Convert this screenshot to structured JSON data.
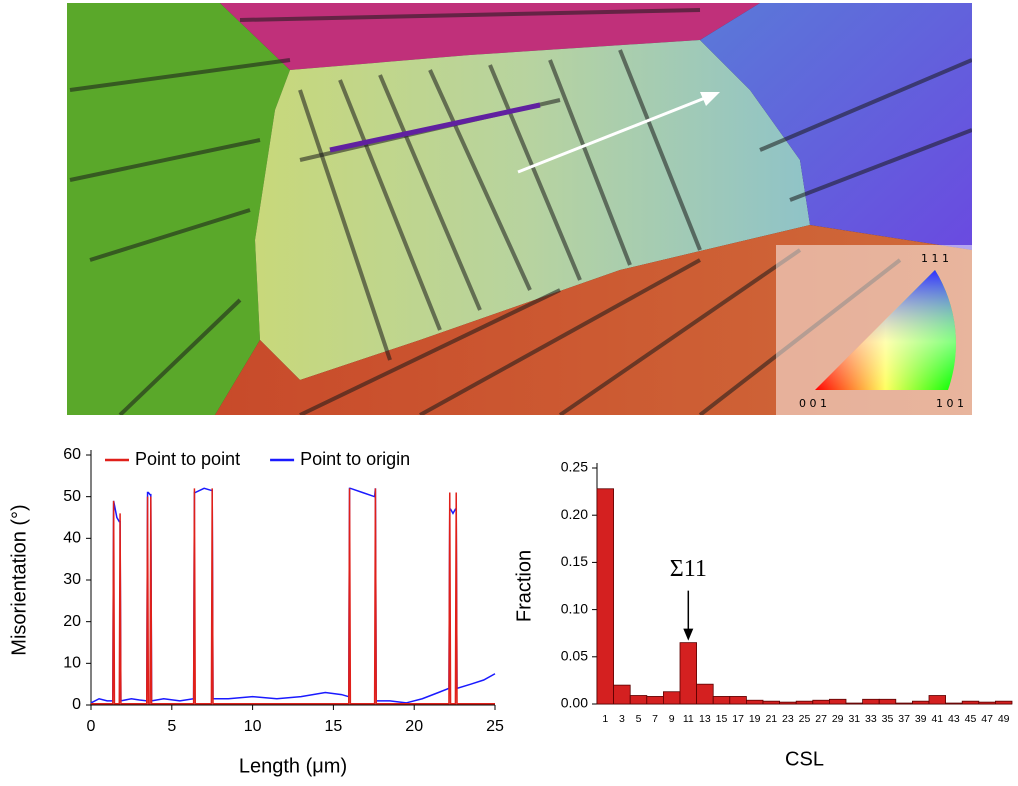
{
  "image": {
    "ipf_labels": [
      "1 1 1",
      "0 0 1",
      "1 0 1"
    ]
  },
  "chart_data": [
    {
      "type": "line",
      "xlabel": "Length (μm)",
      "ylabel": "Misorientation (°)",
      "x": [
        0,
        0.5,
        1.0,
        1.35,
        1.4,
        1.45,
        1.6,
        1.75,
        1.8,
        1.85,
        2.5,
        3.0,
        3.45,
        3.5,
        3.55,
        3.65,
        3.7,
        3.75,
        4.5,
        5.5,
        6.35,
        6.4,
        6.45,
        7.0,
        7.45,
        7.5,
        7.55,
        8.5,
        10,
        11.5,
        13,
        14.5,
        15.5,
        15.95,
        16.0,
        16.05,
        16.8,
        17.55,
        17.6,
        17.65,
        18.5,
        19.5,
        20.5,
        21.5,
        22.15,
        22.2,
        22.25,
        22.4,
        22.55,
        22.6,
        22.65,
        23.5,
        24.3,
        25
      ],
      "series": [
        {
          "name": "Point to origin",
          "color": "#1a1aff",
          "values": [
            0.5,
            1.5,
            1,
            1,
            49,
            48,
            45,
            44,
            44,
            1,
            1.5,
            1.2,
            1,
            51,
            51,
            50.5,
            50.5,
            1,
            1.5,
            1,
            1.5,
            51,
            51,
            52,
            51.5,
            51.5,
            1.5,
            1.5,
            2,
            1.5,
            2,
            3,
            2.5,
            2,
            52,
            52,
            51,
            50,
            52,
            1,
            1,
            0.5,
            1.5,
            3,
            4,
            47,
            47,
            46,
            47,
            47,
            4,
            5,
            6,
            7.5
          ]
        },
        {
          "name": "Point to point",
          "color": "#e0201a",
          "values": [
            0.3,
            0.3,
            0.3,
            0.3,
            49,
            0.3,
            0.3,
            0.3,
            46,
            0.3,
            0.3,
            0.3,
            0.3,
            50,
            0.3,
            0.3,
            50,
            0.3,
            0.3,
            0.3,
            0.3,
            52,
            0.3,
            0.3,
            0.3,
            52,
            0.3,
            0.3,
            0.3,
            0.3,
            0.3,
            0.3,
            0.3,
            0.3,
            52,
            0.3,
            0.3,
            0.3,
            52,
            0.3,
            0.3,
            0.3,
            0.3,
            0.3,
            0.3,
            51,
            0.3,
            0.3,
            0.3,
            51,
            0.3,
            0.3,
            0.3,
            0.3
          ]
        }
      ],
      "legend_order": [
        1,
        0
      ],
      "xlim": [
        0,
        25
      ],
      "xticks": [
        0,
        5,
        10,
        15,
        20,
        25
      ],
      "ylim": [
        0,
        60
      ],
      "yticks": [
        0,
        10,
        20,
        30,
        40,
        50,
        60
      ]
    },
    {
      "type": "bar",
      "xlabel": "CSL",
      "ylabel": "Fraction",
      "color": "#d42020",
      "categories": [
        "1",
        "3",
        "5",
        "7",
        "9",
        "11",
        "13",
        "15",
        "17",
        "19",
        "21",
        "23",
        "25",
        "27",
        "29",
        "31",
        "33",
        "35",
        "37",
        "39",
        "41",
        "43",
        "45",
        "47",
        "49"
      ],
      "values": [
        0.228,
        0.02,
        0.009,
        0.008,
        0.013,
        0.065,
        0.021,
        0.008,
        0.008,
        0.004,
        0.003,
        0.002,
        0.003,
        0.004,
        0.005,
        0.001,
        0.005,
        0.005,
        0.001,
        0.003,
        0.009,
        0.001,
        0.003,
        0.002,
        0.003
      ],
      "annotation": {
        "text": "Σ11",
        "index": 5
      },
      "ylim": [
        0,
        0.25
      ],
      "yticks": [
        {
          "value": 0,
          "label": "0.00"
        },
        {
          "value": 0.05,
          "label": "0.05"
        },
        {
          "value": 0.1,
          "label": "0.10"
        },
        {
          "value": 0.15,
          "label": "0.15"
        },
        {
          "value": 0.2,
          "label": "0.20"
        },
        {
          "value": 0.25,
          "label": "0.25"
        }
      ]
    }
  ]
}
